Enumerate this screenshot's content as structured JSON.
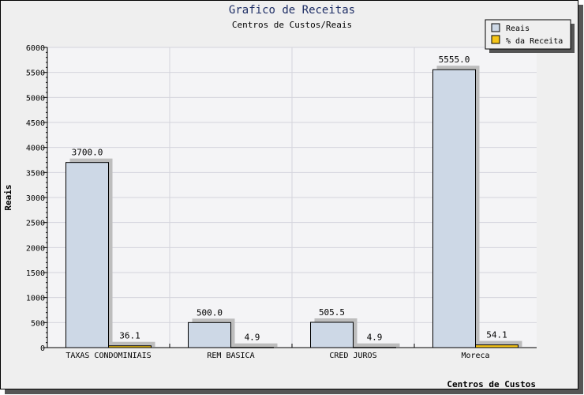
{
  "chart_data": {
    "type": "bar",
    "title": "Grafico de Receitas",
    "subtitle": "Centros de Custos/Reais",
    "xlabel": "Centros de Custos",
    "ylabel": "Reais",
    "ylim": [
      0,
      6000
    ],
    "yticks": [
      0,
      500,
      1000,
      1500,
      2000,
      2500,
      3000,
      3500,
      4000,
      4500,
      5000,
      5500,
      6000
    ],
    "categories": [
      "TAXAS CONDOMINIAIS",
      "REM BASICA",
      "CRED JUROS",
      "Moreca"
    ],
    "series": [
      {
        "name": "Reais",
        "values": [
          3700.0,
          500.0,
          505.5,
          5555.0
        ],
        "labels": [
          "3700.0",
          "500.0",
          "505.5",
          "5555.0"
        ],
        "color": "#cdd8e6"
      },
      {
        "name": "% da Receita",
        "values": [
          36.1,
          4.9,
          4.9,
          54.1
        ],
        "labels": [
          "36.1",
          "4.9",
          "4.9",
          "54.1"
        ],
        "color": "#f5c518"
      }
    ],
    "grid": true,
    "legend_position": "top-right"
  }
}
